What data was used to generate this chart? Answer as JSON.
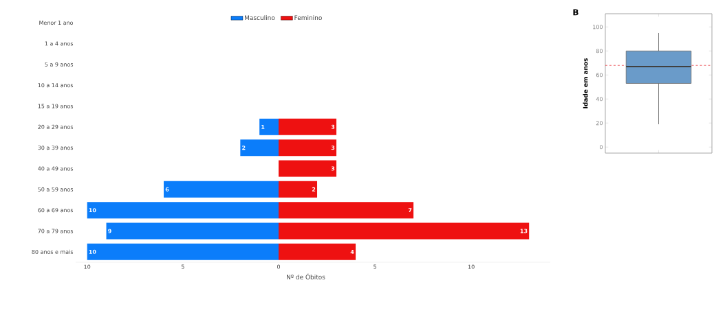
{
  "chart_data": [
    {
      "type": "bar",
      "orientation": "horizontal",
      "legend": "top right",
      "data_labels": true,
      "categories": [
        "Menor 1 ano",
        "1 a 4 anos",
        "5 a 9 anos",
        "10 a 14 anos",
        "15 a 19 anos",
        "20 a 29 anos",
        "30 a 39 anos",
        "40 a 49 anos",
        "50 a 59 anos",
        "60 a 69 anos",
        "70 a 79 anos",
        "80 anos e mais"
      ],
      "series": [
        {
          "name": "Masculino",
          "color": "#0b7dfa",
          "values": [
            null,
            null,
            null,
            null,
            null,
            1,
            2,
            null,
            6,
            10,
            9,
            10
          ]
        }
      ],
      "xlim": [
        10.6,
        0
      ],
      "xticks": [
        10,
        5
      ]
    },
    {
      "type": "bar",
      "orientation": "horizontal",
      "legend": "top left",
      "data_labels": true,
      "tick_labels": "x",
      "xlabel": "Nº de Óbitos",
      "categories": [
        null,
        null,
        null,
        null,
        null,
        null,
        null,
        null,
        null,
        null,
        null,
        null
      ],
      "series": [
        {
          "name": "Feminino",
          "color": "#ee1111",
          "values": [
            null,
            null,
            null,
            null,
            null,
            3,
            3,
            3,
            2,
            7,
            13,
            4
          ]
        }
      ],
      "xlim": [
        0,
        14.1
      ],
      "xticks": [
        0,
        5,
        10
      ]
    },
    {
      "type": "box",
      "title": "B",
      "ylabel": "Idade em anos",
      "categories": [
        null
      ],
      "series": [
        {
          "color": "#6a9bc9",
          "boxes": [
            {
              "low": 19,
              "q1": 53,
              "median": 67,
              "q3": 80,
              "high": 95
            }
          ]
        }
      ],
      "ylim": [
        -5,
        111
      ],
      "yticks": [
        0,
        20,
        40,
        60,
        80,
        100
      ],
      "ref_lines": [
        {
          "axis": "y",
          "value": 68,
          "color": "#e8383d",
          "line_style": "dashed"
        }
      ]
    }
  ]
}
